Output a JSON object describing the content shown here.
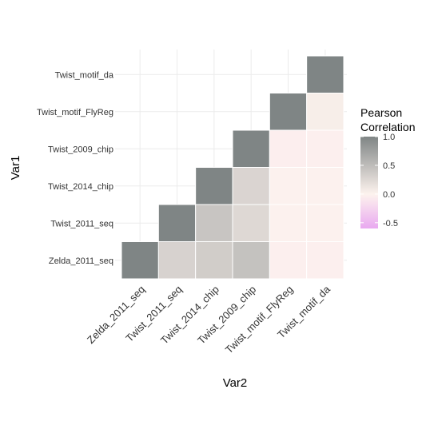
{
  "chart_data": {
    "type": "heatmap",
    "x_categories": [
      "Zelda_2011_seq",
      "Twist_2011_seq",
      "Twist_2014_chip",
      "Twist_2009_chip",
      "Twist_motif_FlyReg",
      "Twist_motif_da"
    ],
    "y_categories": [
      "Zelda_2011_seq",
      "Twist_2011_seq",
      "Twist_2014_chip",
      "Twist_2009_chip",
      "Twist_motif_FlyReg",
      "Twist_motif_da"
    ],
    "cells": [
      {
        "x": "Zelda_2011_seq",
        "y": "Zelda_2011_seq",
        "value": 1.0
      },
      {
        "x": "Twist_2011_seq",
        "y": "Zelda_2011_seq",
        "value": 0.3
      },
      {
        "x": "Twist_2014_chip",
        "y": "Zelda_2011_seq",
        "value": 0.35
      },
      {
        "x": "Twist_2009_chip",
        "y": "Zelda_2011_seq",
        "value": 0.45
      },
      {
        "x": "Twist_motif_FlyReg",
        "y": "Zelda_2011_seq",
        "value": -0.03
      },
      {
        "x": "Twist_motif_da",
        "y": "Zelda_2011_seq",
        "value": -0.03
      },
      {
        "x": "Twist_2011_seq",
        "y": "Twist_2011_seq",
        "value": 1.0
      },
      {
        "x": "Twist_2014_chip",
        "y": "Twist_2011_seq",
        "value": 0.42
      },
      {
        "x": "Twist_2009_chip",
        "y": "Twist_2011_seq",
        "value": 0.25
      },
      {
        "x": "Twist_motif_FlyReg",
        "y": "Twist_2011_seq",
        "value": -0.02
      },
      {
        "x": "Twist_motif_da",
        "y": "Twist_2011_seq",
        "value": -0.02
      },
      {
        "x": "Twist_2014_chip",
        "y": "Twist_2014_chip",
        "value": 1.0
      },
      {
        "x": "Twist_2009_chip",
        "y": "Twist_2014_chip",
        "value": 0.28
      },
      {
        "x": "Twist_motif_FlyReg",
        "y": "Twist_2014_chip",
        "value": -0.02
      },
      {
        "x": "Twist_motif_da",
        "y": "Twist_2014_chip",
        "value": -0.02
      },
      {
        "x": "Twist_2009_chip",
        "y": "Twist_2009_chip",
        "value": 1.0
      },
      {
        "x": "Twist_motif_FlyReg",
        "y": "Twist_2009_chip",
        "value": -0.04
      },
      {
        "x": "Twist_motif_da",
        "y": "Twist_2009_chip",
        "value": -0.03
      },
      {
        "x": "Twist_motif_FlyReg",
        "y": "Twist_motif_FlyReg",
        "value": 1.0
      },
      {
        "x": "Twist_motif_da",
        "y": "Twist_motif_FlyReg",
        "value": 0.05
      },
      {
        "x": "Twist_motif_da",
        "y": "Twist_motif_da",
        "value": 1.0
      }
    ],
    "xlabel": "Var2",
    "ylabel": "Var1",
    "legend": {
      "title_lines": [
        "Pearson",
        "Correlation"
      ],
      "limits": [
        -0.6,
        1.0
      ],
      "ticks": [
        1.0,
        0.5,
        0.0,
        -0.5
      ],
      "tick_labels": [
        "1.0",
        "0.5",
        "0.0",
        "-0.5"
      ],
      "placement": "right",
      "colors": {
        "low": "#e9a9f0",
        "mid": "#fdf3ee",
        "high": "#7f8585"
      }
    },
    "grid": true,
    "colors": {
      "grid": "#ebebeb",
      "tile_border": "#ffffff"
    }
  }
}
